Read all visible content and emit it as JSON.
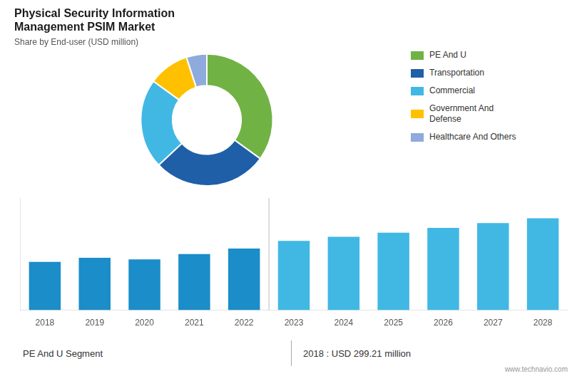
{
  "chart_data": [
    {
      "type": "doughnut",
      "title": "Physical Security Information\nManagement PSIM Market",
      "subtitle": "Share by End-user (USD million)",
      "categories": [
        "PE And U",
        "Transportation",
        "Commercial",
        "Government And\nDefense",
        "Healthcare And Others"
      ],
      "values": [
        35,
        28,
        22,
        10,
        5
      ],
      "colors": [
        "#70b244",
        "#1e5fa8",
        "#41b8e4",
        "#ffc000",
        "#8faadc"
      ],
      "legend": "right"
    },
    {
      "type": "bar",
      "categories": [
        "2018",
        "2019",
        "2020",
        "2021",
        "2022",
        "2023",
        "2024",
        "2025",
        "2026",
        "2027",
        "2028"
      ],
      "values": [
        299,
        325,
        315,
        348,
        382,
        430,
        455,
        480,
        510,
        540,
        570
      ],
      "colors": [
        "#1b8dc8",
        "#1b8dc8",
        "#1b8dc8",
        "#1b8dc8",
        "#1b8dc8",
        "#41b8e4",
        "#41b8e4",
        "#41b8e4",
        "#41b8e4",
        "#41b8e4",
        "#41b8e4"
      ],
      "ylim": [
        0,
        695.4
      ],
      "tick_labels": "x",
      "grid": false,
      "annotations": [
        "PE And U Segment",
        "2018 : USD 299.21 million",
        "www.technavio.com"
      ]
    }
  ]
}
